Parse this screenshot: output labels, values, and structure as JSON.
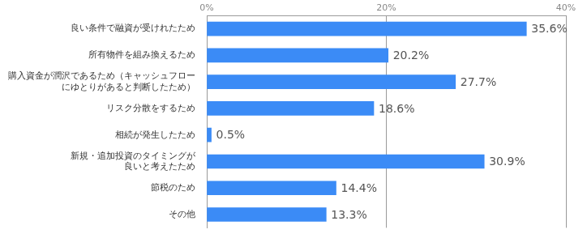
{
  "chart_data": {
    "type": "bar",
    "orientation": "horizontal",
    "categories": [
      "良い条件で融資が受けれたため",
      "所有物件を組み換えるため",
      "購入資金が潤沢であるため（キャッシュフロー\nにゆとりがあると判断したため）",
      "リスク分散をするため",
      "相続が発生したため",
      "新規・追加投資のタイミングが\n良いと考えたため",
      "節税のため",
      "その他"
    ],
    "values": [
      35.6,
      20.2,
      27.7,
      18.6,
      0.5,
      30.9,
      14.4,
      13.3
    ],
    "value_labels": [
      "35.6%",
      "20.2%",
      "27.7%",
      "18.6%",
      "0.5%",
      "30.9%",
      "14.4%",
      "13.3%"
    ],
    "color": "#3b8bf6",
    "xlim": [
      0,
      40
    ],
    "xticks": [
      {
        "value": 0,
        "label": "0%"
      },
      {
        "value": 20,
        "label": "20%"
      },
      {
        "value": 40,
        "label": "40%"
      }
    ],
    "grid": true,
    "data_labels": true
  }
}
